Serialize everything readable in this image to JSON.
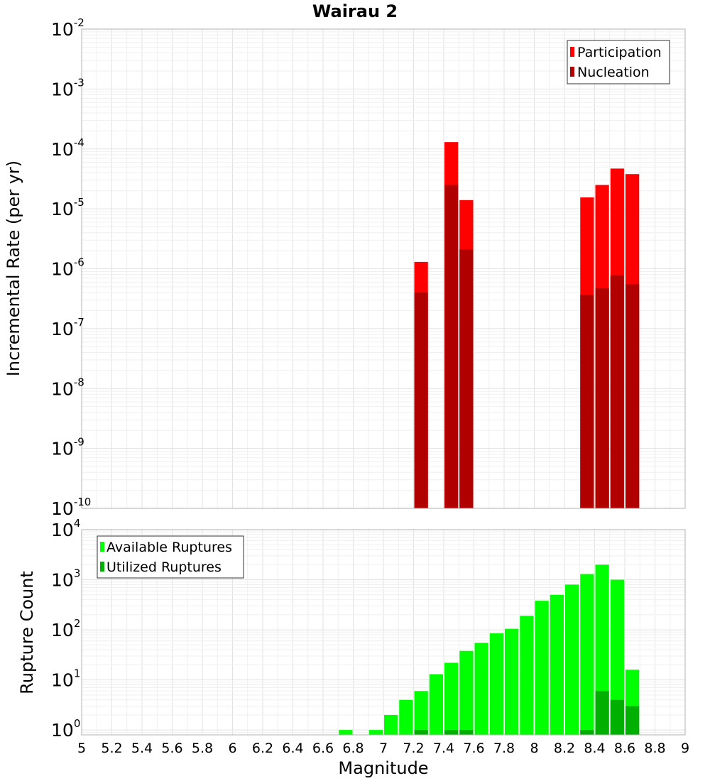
{
  "chart_data": [
    {
      "type": "bar",
      "title": "Wairau 2",
      "xlabel": "",
      "ylabel": "Incremental Rate (per yr)",
      "yscale": "log",
      "ylim": [
        1e-10,
        0.01
      ],
      "xlim": [
        5,
        9
      ],
      "legend": "top-right",
      "series": [
        {
          "name": "Participation",
          "color": "#ff0000",
          "x": [
            7.25,
            7.45,
            7.55,
            8.35,
            8.45,
            8.55,
            8.65
          ],
          "values": [
            1.3e-06,
            0.00013,
            1.4e-05,
            1.55e-05,
            2.5e-05,
            4.7e-05,
            3.8e-05
          ]
        },
        {
          "name": "Nucleation",
          "color": "#b00000",
          "x": [
            7.25,
            7.45,
            7.55,
            8.35,
            8.45,
            8.55,
            8.65
          ],
          "values": [
            4e-07,
            2.5e-05,
            2.1e-06,
            3.7e-07,
            4.7e-07,
            7.7e-07,
            5.5e-07
          ]
        }
      ]
    },
    {
      "type": "bar",
      "title": "",
      "xlabel": "Magnitude",
      "ylabel": "Rupture Count",
      "yscale": "log",
      "ylim": [
        0.8,
        10000
      ],
      "xlim": [
        5,
        9
      ],
      "legend": "top-left",
      "series": [
        {
          "name": "Available Ruptures",
          "color": "#00ff00",
          "x": [
            6.75,
            6.95,
            7.05,
            7.15,
            7.25,
            7.35,
            7.45,
            7.55,
            7.65,
            7.75,
            7.85,
            7.95,
            8.05,
            8.15,
            8.25,
            8.35,
            8.45,
            8.55,
            8.65
          ],
          "values": [
            1,
            1,
            2,
            4,
            6,
            13,
            22,
            38,
            55,
            85,
            105,
            190,
            380,
            500,
            800,
            1300,
            2000,
            1000,
            16
          ]
        },
        {
          "name": "Utilized Ruptures",
          "color": "#00b000",
          "x": [
            7.25,
            7.45,
            7.55,
            8.35,
            8.45,
            8.55,
            8.65
          ],
          "values": [
            1,
            1,
            1,
            1,
            6,
            4,
            3
          ]
        }
      ],
      "xticks": [
        "5",
        "5.2",
        "5.4",
        "5.6",
        "5.8",
        "6",
        "6.2",
        "6.4",
        "6.6",
        "6.8",
        "7",
        "7.2",
        "7.4",
        "7.6",
        "7.8",
        "8",
        "8.2",
        "8.4",
        "8.6",
        "8.8",
        "9"
      ]
    }
  ],
  "top_yticks": [
    {
      "base": "10",
      "exp": "-2"
    },
    {
      "base": "10",
      "exp": "-3"
    },
    {
      "base": "10",
      "exp": "-4"
    },
    {
      "base": "10",
      "exp": "-5"
    },
    {
      "base": "10",
      "exp": "-6"
    },
    {
      "base": "10",
      "exp": "-7"
    },
    {
      "base": "10",
      "exp": "-8"
    },
    {
      "base": "10",
      "exp": "-9"
    },
    {
      "base": "10",
      "exp": "-10"
    }
  ],
  "bottom_yticks": [
    {
      "base": "10",
      "exp": "4"
    },
    {
      "base": "10",
      "exp": "3"
    },
    {
      "base": "10",
      "exp": "2"
    },
    {
      "base": "10",
      "exp": "1"
    },
    {
      "base": "10",
      "exp": "0"
    }
  ]
}
